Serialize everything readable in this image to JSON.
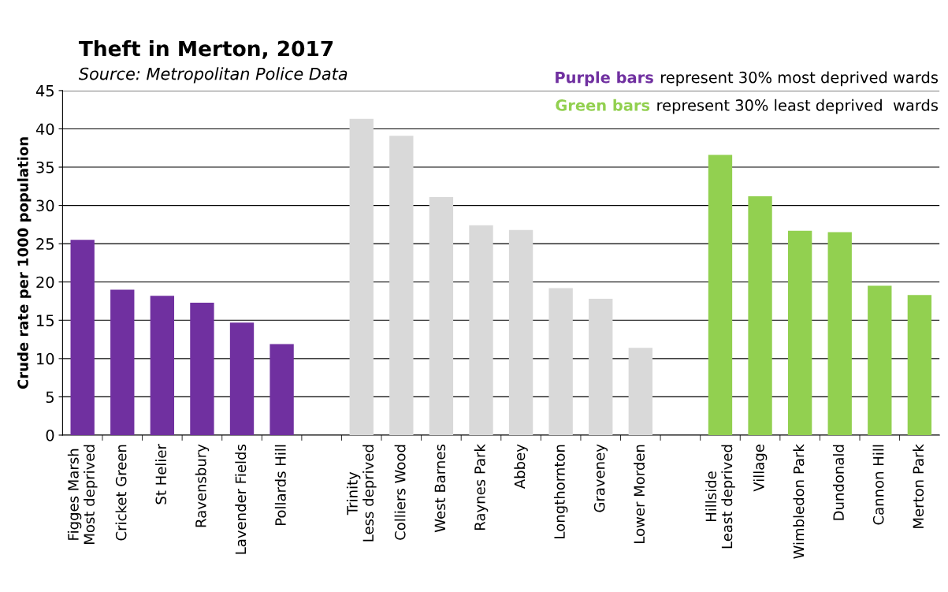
{
  "chart_data": {
    "type": "bar",
    "title": "Theft in Merton, 2017",
    "ylabel": "Crude rate per 1000 population",
    "annotations": [
      "Source: Metropolitan Police Data",
      "Purple bars",
      "represent 30% most deprived wards",
      "Green bars",
      "represent 30% least deprived  wards"
    ],
    "categories": [
      "Figges Marsh\nMost deprived",
      "Cricket Green",
      "St Helier",
      "Ravensbury",
      "Lavender Fields",
      "Pollards Hill",
      null,
      "Trinity\nLess deprived",
      "Colliers Wood",
      "West Barnes",
      "Raynes Park",
      "Abbey",
      "Longthornton",
      "Graveney",
      "Lower Morden",
      null,
      "Hillside\nLeast deprived",
      "Village",
      "Wimbledon Park",
      "Dundonald",
      "Cannon Hill",
      "Merton Park"
    ],
    "values": [
      25.5,
      19.0,
      18.2,
      17.3,
      14.7,
      11.9,
      null,
      41.3,
      39.1,
      31.1,
      27.4,
      26.8,
      19.2,
      17.8,
      11.4,
      null,
      36.6,
      31.2,
      26.7,
      26.5,
      19.5,
      18.3
    ],
    "colors": [
      "#7030a0",
      "#7030a0",
      "#7030a0",
      "#7030a0",
      "#7030a0",
      "#7030a0",
      null,
      "#d9d9d9",
      "#d9d9d9",
      "#d9d9d9",
      "#d9d9d9",
      "#d9d9d9",
      "#d9d9d9",
      "#d9d9d9",
      "#d9d9d9",
      null,
      "#92d050",
      "#92d050",
      "#92d050",
      "#92d050",
      "#92d050",
      "#92d050"
    ],
    "ylim": [
      0,
      45
    ],
    "yticks": [
      0,
      5,
      10,
      15,
      20,
      25,
      30,
      35,
      40,
      45
    ],
    "grid": "y"
  }
}
